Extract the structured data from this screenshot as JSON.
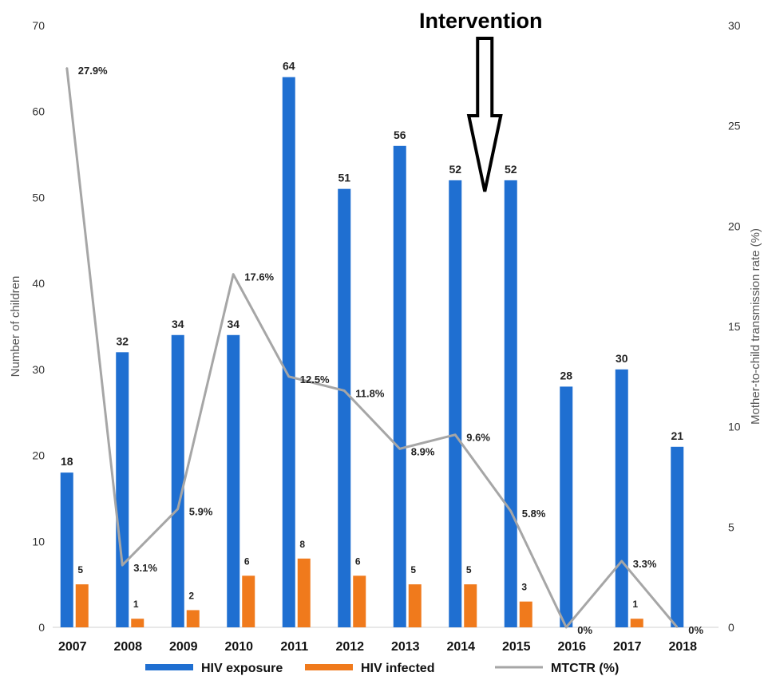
{
  "chart_data": {
    "type": "bar",
    "categories": [
      "2007",
      "2008",
      "2009",
      "2010",
      "2011",
      "2012",
      "2013",
      "2014",
      "2015",
      "2016",
      "2017",
      "2018"
    ],
    "series": [
      {
        "name": "HIV exposure",
        "kind": "bar",
        "axis": "left",
        "color": "#1f6fd1",
        "values": [
          18,
          32,
          34,
          34,
          64,
          51,
          56,
          52,
          52,
          28,
          30,
          21
        ]
      },
      {
        "name": "HIV infected",
        "kind": "bar",
        "axis": "left",
        "color": "#f07a1c",
        "values": [
          5,
          1,
          2,
          6,
          8,
          6,
          5,
          5,
          3,
          0,
          1,
          0
        ]
      },
      {
        "name": "MTCTR (%)",
        "kind": "line",
        "axis": "right",
        "color": "#a6a6a6",
        "values": [
          27.9,
          3.1,
          5.9,
          17.6,
          12.5,
          11.8,
          8.9,
          9.6,
          5.8,
          0,
          3.3,
          0
        ],
        "labels": [
          "27.9%",
          "3.1%",
          "5.9%",
          "17.6%",
          "12.5%",
          "11.8%",
          "8.9%",
          "9.6%",
          "5.8%",
          "0%",
          "3.3%",
          "0%"
        ]
      }
    ],
    "bar_labels": {
      "HIV exposure": [
        "18",
        "32",
        "34",
        "34",
        "64",
        "51",
        "56",
        "52",
        "52",
        "28",
        "30",
        "21"
      ],
      "HIV infected": [
        "5",
        "1",
        "2",
        "6",
        "8",
        "6",
        "5",
        "5",
        "3",
        "",
        "1",
        ""
      ]
    },
    "ylabel": "Number of children",
    "y2label": "Mother-to-child transmission rate (%)",
    "ylim": [
      0,
      70
    ],
    "y2lim": [
      0,
      30
    ],
    "yticks": [
      "0",
      "10",
      "20",
      "30",
      "40",
      "50",
      "60",
      "70"
    ],
    "y2ticks": [
      "0",
      "5",
      "10",
      "15",
      "20",
      "25",
      "30"
    ],
    "grid": false,
    "legend_position": "bottom",
    "annotation": {
      "text": "Intervention",
      "category": "2014"
    }
  }
}
